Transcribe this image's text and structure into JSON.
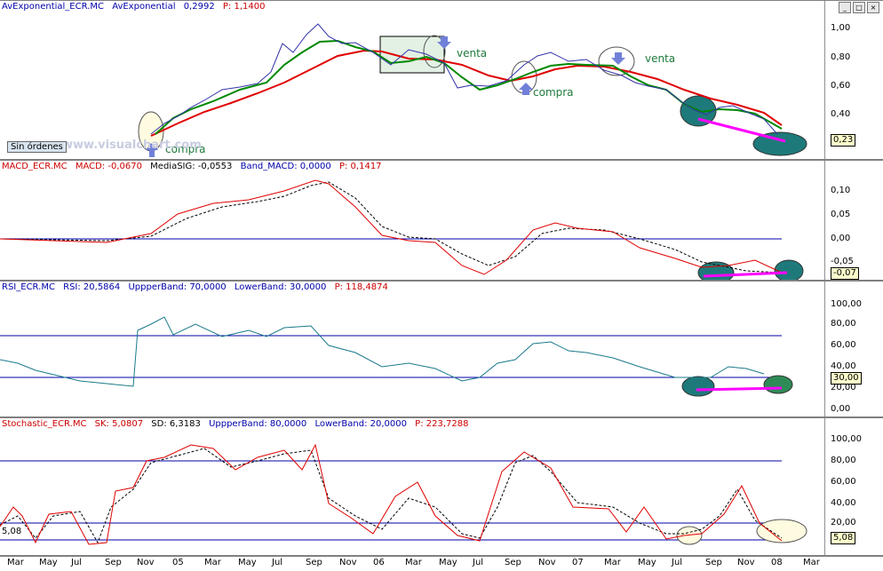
{
  "window": {
    "buttons": [
      "_",
      "□",
      "×"
    ]
  },
  "panels": {
    "price": {
      "header": [
        {
          "text": "AvExponential_ECR.MC",
          "color": "#0000aa"
        },
        {
          "text": "AvExponential",
          "color": "#0000aa"
        },
        {
          "text": "0,2992",
          "color": "#0000aa"
        },
        {
          "text": "P: 1,1400",
          "color": "#cc0000"
        }
      ],
      "ticks": [
        "1,00",
        "0,80",
        "0,60",
        "0,40",
        "0,20"
      ],
      "value_box": "0,23",
      "annotations": {
        "venta1": "venta",
        "venta2": "venta",
        "compra1": "compra",
        "compra2": "compra"
      },
      "sin_ordenes": "Sin órdenes",
      "watermark": "www.visualchart.com"
    },
    "macd": {
      "header": [
        {
          "text": "MACD_ECR.MC",
          "color": "#cc0000"
        },
        {
          "text": "MACD: -0,0670",
          "color": "#cc0000"
        },
        {
          "text": "MediaSIG: -0,0553",
          "color": "#000000"
        },
        {
          "text": "Band_MACD: 0,0000",
          "color": "#0000aa"
        },
        {
          "text": "P: 0,1417",
          "color": "#cc0000"
        }
      ],
      "ticks": [
        "0,10",
        "0,05",
        "0,00",
        "-0,05"
      ],
      "value_box": "-0,07"
    },
    "rsi": {
      "header": [
        {
          "text": "RSI_ECR.MC",
          "color": "#0000aa"
        },
        {
          "text": "RSI: 20,5864",
          "color": "#0000aa"
        },
        {
          "text": "UppperBand: 70,0000",
          "color": "#0000aa"
        },
        {
          "text": "LowerBand: 30,0000",
          "color": "#0000aa"
        },
        {
          "text": "P: 118,4874",
          "color": "#cc0000"
        }
      ],
      "ticks": [
        "100,00",
        "80,00",
        "60,00",
        "40,00",
        "20,00",
        "0,00"
      ],
      "value_box": "30,00"
    },
    "stoch": {
      "header": [
        {
          "text": "Stochastic_ECR.MC",
          "color": "#cc0000"
        },
        {
          "text": "SK: 5,0807",
          "color": "#cc0000"
        },
        {
          "text": "SD: 6,3183",
          "color": "#000000"
        },
        {
          "text": "UppperBand: 80,0000",
          "color": "#0000aa"
        },
        {
          "text": "LowerBand: 20,0000",
          "color": "#0000aa"
        },
        {
          "text": "P: 223,7288",
          "color": "#cc0000"
        }
      ],
      "ticks": [
        "100,00",
        "80,00",
        "60,00",
        "40,00",
        "20,00"
      ],
      "value_box": "5,08",
      "left_label": "5,08"
    }
  },
  "xaxis": [
    "Mar",
    "May",
    "Jul",
    "Sep",
    "Nov",
    "05",
    "Mar",
    "May",
    "Jul",
    "Sep",
    "Nov",
    "06",
    "Mar",
    "May",
    "Jul",
    "Sep",
    "Nov",
    "07",
    "Mar",
    "May",
    "Jul",
    "Sep",
    "Nov",
    "08",
    "Mar"
  ]
}
